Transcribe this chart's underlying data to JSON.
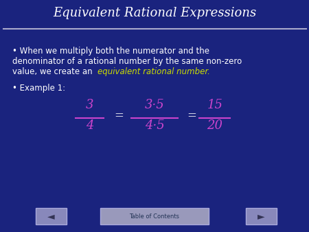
{
  "title": "Equivalent Rational Expressions",
  "title_color": "#FFFFFF",
  "title_fontsize": 13,
  "bg_color": "#1a237e",
  "line_color": "#AAAACC",
  "bullet1_line1": "• When we multiply both the numerator and the",
  "bullet1_line2": "denominator of a rational number by the same non-zero",
  "bullet1_line3a": "value, we create an ",
  "bullet1_line3b": "equivalent rational number.",
  "bullet2": "• Example 1:",
  "fraction_color": "#CC44CC",
  "text_color": "#FFFFFF",
  "yellow_color": "#CCDD00",
  "toc_text": "Table of Contents",
  "nav_arrow_left": "◄",
  "nav_arrow_right": "►"
}
